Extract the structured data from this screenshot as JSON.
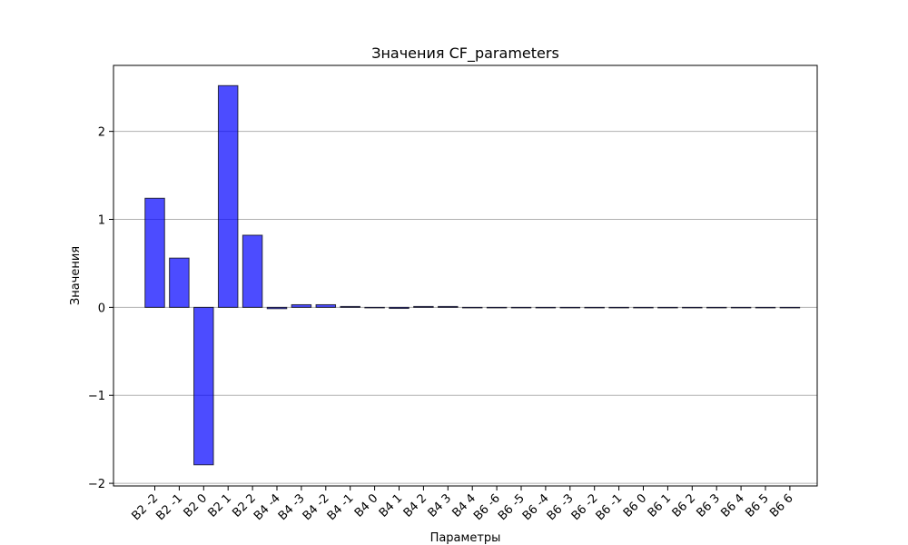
{
  "chart_data": {
    "type": "bar",
    "title": "Значения CF_parameters",
    "xlabel": "Параметры",
    "ylabel": "Значения",
    "ylim": [
      -2.03,
      2.75
    ],
    "yticks": [
      2,
      1,
      0,
      -1,
      -2
    ],
    "ytick_labels": [
      "2",
      "1",
      "0",
      "−1",
      "−2"
    ],
    "grid": "y",
    "bar_color": "#0000ff",
    "bar_opacity": 0.7,
    "bar_edge_color": "#000000",
    "categories": [
      "B2 -2",
      "B2 -1",
      "B2 0",
      "B2 1",
      "B2 2",
      "B4 -4",
      "B4 -3",
      "B4 -2",
      "B4 -1",
      "B4 0",
      "B4 1",
      "B4 2",
      "B4 3",
      "B4 4",
      "B6 -6",
      "B6 -5",
      "B6 -4",
      "B6 -3",
      "B6 -2",
      "B6 -1",
      "B6 0",
      "B6 1",
      "B6 2",
      "B6 3",
      "B6 4",
      "B6 5",
      "B6 6"
    ],
    "values": [
      1.24,
      0.56,
      -1.79,
      2.52,
      0.82,
      -0.015,
      0.03,
      0.03,
      0.01,
      0.0,
      -0.012,
      0.01,
      0.01,
      0.0,
      0.0,
      0.0,
      0.0,
      0.0,
      0.0,
      0.0,
      0.0,
      0.0,
      0.0,
      0.0,
      0.0,
      0.0,
      0.0
    ]
  }
}
